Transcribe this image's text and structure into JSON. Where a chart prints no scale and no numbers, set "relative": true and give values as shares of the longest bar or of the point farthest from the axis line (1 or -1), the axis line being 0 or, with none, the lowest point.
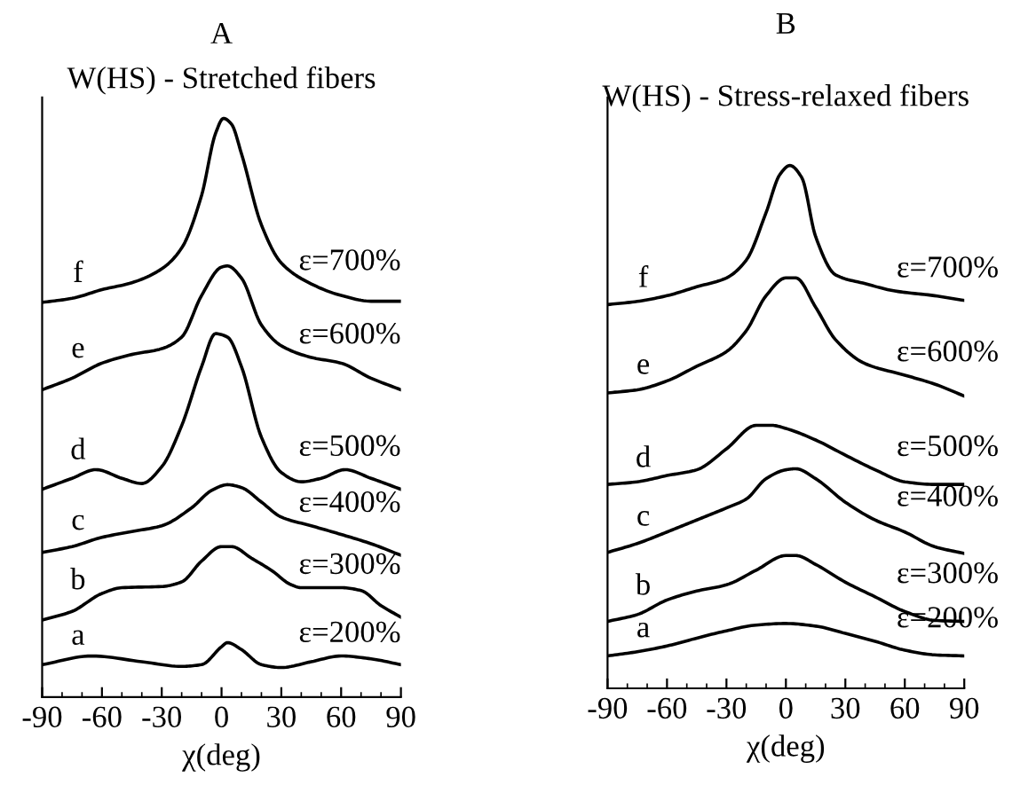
{
  "chart_data": [
    {
      "type": "line",
      "title": "A",
      "subtitle": "W(HS) - Stretched fibers",
      "xlabel": "χ(deg)",
      "relative": true,
      "xlim": [
        -90,
        90
      ],
      "xticks": [
        -90,
        -60,
        -30,
        0,
        30,
        60,
        90
      ],
      "tick_labels": "x",
      "series": [
        {
          "name": "a",
          "color": "#000000",
          "x": [
            -90,
            -65,
            -40,
            -20,
            -10,
            0,
            3,
            10,
            20,
            30,
            45,
            60,
            75,
            90
          ],
          "values": [
            0.056,
            0.071,
            0.061,
            0.053,
            0.056,
            0.087,
            0.094,
            0.082,
            0.056,
            0.051,
            0.061,
            0.071,
            0.066,
            0.056
          ]
        },
        {
          "name": "b",
          "color": "#000000",
          "x": [
            -90,
            -75,
            -60,
            -50,
            -30,
            -20,
            -10,
            0,
            5,
            15,
            25,
            35,
            40,
            60,
            70,
            80,
            90
          ],
          "values": [
            0.133,
            0.148,
            0.179,
            0.189,
            0.191,
            0.199,
            0.235,
            0.26,
            0.26,
            0.24,
            0.219,
            0.194,
            0.189,
            0.189,
            0.184,
            0.158,
            0.138
          ]
        },
        {
          "name": "c",
          "color": "#000000",
          "x": [
            -90,
            -75,
            -60,
            -45,
            -30,
            -15,
            -5,
            3,
            10,
            20,
            30,
            45,
            60,
            75,
            90
          ],
          "values": [
            0.25,
            0.26,
            0.276,
            0.286,
            0.296,
            0.327,
            0.357,
            0.367,
            0.362,
            0.337,
            0.311,
            0.296,
            0.281,
            0.265,
            0.245
          ]
        },
        {
          "name": "d",
          "color": "#000000",
          "x": [
            -90,
            -75,
            -63,
            -50,
            -40,
            -30,
            -20,
            -10,
            -3,
            3,
            10,
            20,
            30,
            40,
            50,
            62,
            75,
            90
          ],
          "values": [
            0.359,
            0.378,
            0.393,
            0.378,
            0.369,
            0.398,
            0.469,
            0.571,
            0.628,
            0.622,
            0.571,
            0.449,
            0.388,
            0.372,
            0.378,
            0.393,
            0.378,
            0.359
          ]
        },
        {
          "name": "e",
          "color": "#000000",
          "x": [
            -90,
            -75,
            -60,
            -45,
            -30,
            -20,
            -10,
            0,
            3,
            10,
            20,
            30,
            45,
            60,
            75,
            90
          ],
          "values": [
            0.531,
            0.551,
            0.577,
            0.592,
            0.602,
            0.622,
            0.694,
            0.743,
            0.745,
            0.724,
            0.643,
            0.607,
            0.587,
            0.577,
            0.551,
            0.531
          ]
        },
        {
          "name": "f",
          "color": "#000000",
          "x": [
            -90,
            -75,
            -60,
            -45,
            -30,
            -20,
            -10,
            -3,
            1,
            5,
            10,
            20,
            30,
            45,
            60,
            75,
            90
          ],
          "values": [
            0.682,
            0.689,
            0.704,
            0.716,
            0.74,
            0.776,
            0.867,
            0.974,
            1,
            0.99,
            0.939,
            0.816,
            0.75,
            0.714,
            0.694,
            0.684,
            0.684
          ]
        }
      ],
      "annotations": [
        "ε=200%",
        "ε=300%",
        "ε=400%",
        "ε=500%",
        "ε=600%",
        "ε=700%"
      ]
    },
    {
      "type": "line",
      "title": "B",
      "subtitle": "W(HS) - Stress-relaxed fibers",
      "xlabel": "χ(deg)",
      "relative": true,
      "xlim": [
        -90,
        90
      ],
      "xticks": [
        -90,
        -60,
        -30,
        0,
        30,
        60,
        90
      ],
      "tick_labels": "x",
      "series": [
        {
          "name": "a",
          "color": "#000000",
          "x": [
            -90,
            -75,
            -60,
            -45,
            -30,
            -15,
            0,
            15,
            30,
            45,
            60,
            75,
            90
          ],
          "values": [
            0.062,
            0.07,
            0.081,
            0.096,
            0.11,
            0.121,
            0.124,
            0.119,
            0.105,
            0.09,
            0.073,
            0.064,
            0.062
          ]
        },
        {
          "name": "b",
          "color": "#000000",
          "x": [
            -90,
            -75,
            -60,
            -45,
            -30,
            -15,
            0,
            5,
            15,
            30,
            45,
            60,
            75,
            90
          ],
          "values": [
            0.128,
            0.141,
            0.169,
            0.186,
            0.198,
            0.226,
            0.254,
            0.254,
            0.237,
            0.203,
            0.175,
            0.147,
            0.13,
            0.128
          ]
        },
        {
          "name": "c",
          "color": "#000000",
          "x": [
            -90,
            -75,
            -60,
            -45,
            -30,
            -20,
            -10,
            0,
            5,
            15,
            30,
            45,
            60,
            75,
            90
          ],
          "values": [
            0.26,
            0.277,
            0.299,
            0.322,
            0.345,
            0.362,
            0.401,
            0.418,
            0.42,
            0.401,
            0.356,
            0.322,
            0.299,
            0.271,
            0.258
          ]
        },
        {
          "name": "d",
          "color": "#000000",
          "x": [
            -90,
            -75,
            -60,
            -45,
            -30,
            -15,
            -7,
            0,
            15,
            30,
            45,
            60,
            75,
            90
          ],
          "values": [
            0.39,
            0.395,
            0.407,
            0.418,
            0.458,
            0.503,
            0.503,
            0.497,
            0.475,
            0.446,
            0.418,
            0.395,
            0.39,
            0.39
          ]
        },
        {
          "name": "e",
          "color": "#000000",
          "x": [
            -90,
            -75,
            -60,
            -45,
            -30,
            -20,
            -10,
            0,
            5,
            15,
            25,
            40,
            60,
            75,
            90
          ],
          "values": [
            0.565,
            0.571,
            0.588,
            0.616,
            0.644,
            0.684,
            0.751,
            0.785,
            0.785,
            0.729,
            0.667,
            0.621,
            0.599,
            0.582,
            0.559
          ]
        },
        {
          "name": "f",
          "color": "#000000",
          "x": [
            -90,
            -75,
            -60,
            -45,
            -30,
            -20,
            -10,
            -3,
            2,
            8,
            15,
            25,
            40,
            55,
            75,
            90
          ],
          "values": [
            0.734,
            0.74,
            0.751,
            0.768,
            0.785,
            0.819,
            0.91,
            0.983,
            1,
            0.977,
            0.864,
            0.791,
            0.774,
            0.76,
            0.751,
            0.742
          ]
        }
      ],
      "annotations": [
        "ε=200%",
        "ε=300%",
        "ε=400%",
        "ε=500%",
        "ε=600%",
        "ε=700%"
      ]
    }
  ]
}
